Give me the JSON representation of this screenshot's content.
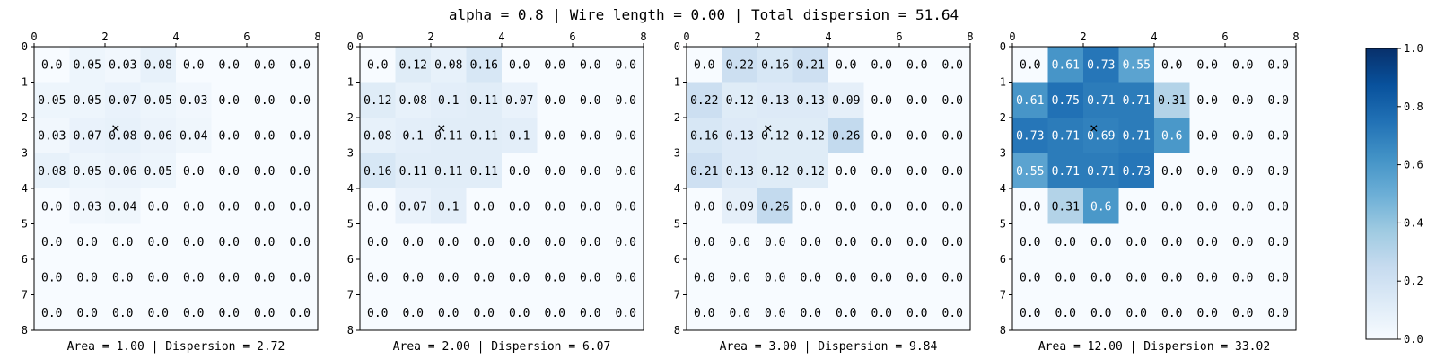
{
  "figure": {
    "title": "alpha = 0.8 | Wire length = 0.00 | Total dispersion = 51.64"
  },
  "chart_data": [
    {
      "type": "heatmap",
      "xlabel": "Area = 1.00 | Dispersion = 2.72",
      "xticks": [
        "0",
        "2",
        "4",
        "6",
        "8"
      ],
      "yticks": [
        "0",
        "1",
        "2",
        "3",
        "4",
        "5",
        "6",
        "7",
        "8"
      ],
      "xlim": [
        0,
        8
      ],
      "ylim": [
        8,
        0
      ],
      "marker": {
        "x": 2.3,
        "y": 2.3,
        "symbol": "×"
      },
      "values": [
        [
          0.0,
          0.05,
          0.03,
          0.08,
          0.0,
          0.0,
          0.0,
          0.0
        ],
        [
          0.05,
          0.05,
          0.07,
          0.05,
          0.03,
          0.0,
          0.0,
          0.0
        ],
        [
          0.03,
          0.07,
          0.08,
          0.06,
          0.04,
          0.0,
          0.0,
          0.0
        ],
        [
          0.08,
          0.05,
          0.06,
          0.05,
          0.0,
          0.0,
          0.0,
          0.0
        ],
        [
          0.0,
          0.03,
          0.04,
          0.0,
          0.0,
          0.0,
          0.0,
          0.0
        ],
        [
          0.0,
          0.0,
          0.0,
          0.0,
          0.0,
          0.0,
          0.0,
          0.0
        ],
        [
          0.0,
          0.0,
          0.0,
          0.0,
          0.0,
          0.0,
          0.0,
          0.0
        ],
        [
          0.0,
          0.0,
          0.0,
          0.0,
          0.0,
          0.0,
          0.0,
          0.0
        ]
      ]
    },
    {
      "type": "heatmap",
      "xlabel": "Area = 2.00 | Dispersion = 6.07",
      "xticks": [
        "0",
        "2",
        "4",
        "6",
        "8"
      ],
      "yticks": [
        "0",
        "1",
        "2",
        "3",
        "4",
        "5",
        "6",
        "7",
        "8"
      ],
      "xlim": [
        0,
        8
      ],
      "ylim": [
        8,
        0
      ],
      "marker": {
        "x": 2.3,
        "y": 2.3,
        "symbol": "×"
      },
      "values": [
        [
          0.0,
          0.12,
          0.08,
          0.16,
          0.0,
          0.0,
          0.0,
          0.0
        ],
        [
          0.12,
          0.08,
          0.1,
          0.11,
          0.07,
          0.0,
          0.0,
          0.0
        ],
        [
          0.08,
          0.1,
          0.11,
          0.11,
          0.1,
          0.0,
          0.0,
          0.0
        ],
        [
          0.16,
          0.11,
          0.11,
          0.11,
          0.0,
          0.0,
          0.0,
          0.0
        ],
        [
          0.0,
          0.07,
          0.1,
          0.0,
          0.0,
          0.0,
          0.0,
          0.0
        ],
        [
          0.0,
          0.0,
          0.0,
          0.0,
          0.0,
          0.0,
          0.0,
          0.0
        ],
        [
          0.0,
          0.0,
          0.0,
          0.0,
          0.0,
          0.0,
          0.0,
          0.0
        ],
        [
          0.0,
          0.0,
          0.0,
          0.0,
          0.0,
          0.0,
          0.0,
          0.0
        ]
      ]
    },
    {
      "type": "heatmap",
      "xlabel": "Area = 3.00 | Dispersion = 9.84",
      "xticks": [
        "0",
        "2",
        "4",
        "6",
        "8"
      ],
      "yticks": [
        "0",
        "1",
        "2",
        "3",
        "4",
        "5",
        "6",
        "7",
        "8"
      ],
      "xlim": [
        0,
        8
      ],
      "ylim": [
        8,
        0
      ],
      "marker": {
        "x": 2.3,
        "y": 2.3,
        "symbol": "×"
      },
      "values": [
        [
          0.0,
          0.22,
          0.16,
          0.21,
          0.0,
          0.0,
          0.0,
          0.0
        ],
        [
          0.22,
          0.12,
          0.13,
          0.13,
          0.09,
          0.0,
          0.0,
          0.0
        ],
        [
          0.16,
          0.13,
          0.12,
          0.12,
          0.26,
          0.0,
          0.0,
          0.0
        ],
        [
          0.21,
          0.13,
          0.12,
          0.12,
          0.0,
          0.0,
          0.0,
          0.0
        ],
        [
          0.0,
          0.09,
          0.26,
          0.0,
          0.0,
          0.0,
          0.0,
          0.0
        ],
        [
          0.0,
          0.0,
          0.0,
          0.0,
          0.0,
          0.0,
          0.0,
          0.0
        ],
        [
          0.0,
          0.0,
          0.0,
          0.0,
          0.0,
          0.0,
          0.0,
          0.0
        ],
        [
          0.0,
          0.0,
          0.0,
          0.0,
          0.0,
          0.0,
          0.0,
          0.0
        ]
      ]
    },
    {
      "type": "heatmap",
      "xlabel": "Area = 12.00 | Dispersion = 33.02",
      "xticks": [
        "0",
        "2",
        "4",
        "6",
        "8"
      ],
      "yticks": [
        "0",
        "1",
        "2",
        "3",
        "4",
        "5",
        "6",
        "7",
        "8"
      ],
      "xlim": [
        0,
        8
      ],
      "ylim": [
        8,
        0
      ],
      "marker": {
        "x": 2.3,
        "y": 2.3,
        "symbol": "×"
      },
      "values": [
        [
          0.0,
          0.61,
          0.73,
          0.55,
          0.0,
          0.0,
          0.0,
          0.0
        ],
        [
          0.61,
          0.75,
          0.71,
          0.71,
          0.31,
          0.0,
          0.0,
          0.0
        ],
        [
          0.73,
          0.71,
          0.69,
          0.71,
          0.6,
          0.0,
          0.0,
          0.0
        ],
        [
          0.55,
          0.71,
          0.71,
          0.73,
          0.0,
          0.0,
          0.0,
          0.0
        ],
        [
          0.0,
          0.31,
          0.6,
          0.0,
          0.0,
          0.0,
          0.0,
          0.0
        ],
        [
          0.0,
          0.0,
          0.0,
          0.0,
          0.0,
          0.0,
          0.0,
          0.0
        ],
        [
          0.0,
          0.0,
          0.0,
          0.0,
          0.0,
          0.0,
          0.0,
          0.0
        ],
        [
          0.0,
          0.0,
          0.0,
          0.0,
          0.0,
          0.0,
          0.0,
          0.0
        ]
      ]
    }
  ],
  "colorbar": {
    "colormap": "Blues",
    "range": [
      0.0,
      1.0
    ],
    "ticks": [
      "0.0",
      "0.2",
      "0.4",
      "0.6",
      "0.8",
      "1.0"
    ]
  }
}
